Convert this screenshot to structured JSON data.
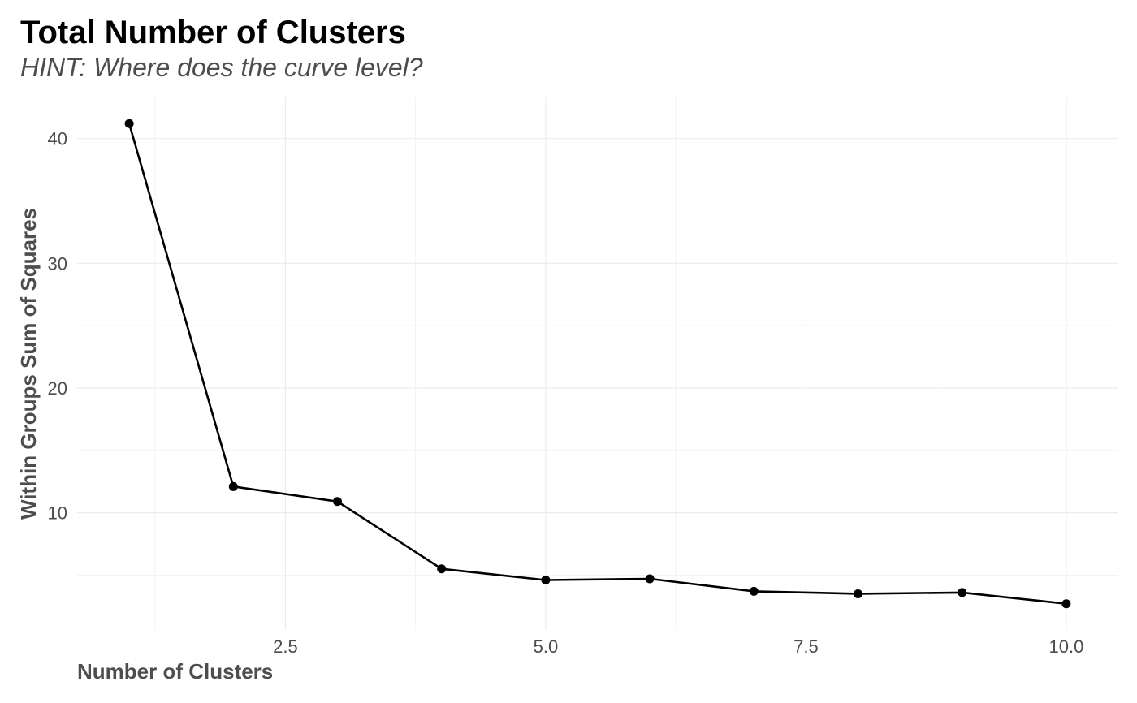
{
  "chart_data": {
    "type": "line",
    "title": "Total Number of Clusters",
    "subtitle": "HINT: Where does the curve level?",
    "xlabel": "Number of Clusters",
    "ylabel": "Within Groups Sum of Squares",
    "x": [
      1,
      2,
      3,
      4,
      5,
      6,
      7,
      8,
      9,
      10
    ],
    "values": [
      41.2,
      12.1,
      10.9,
      5.5,
      4.6,
      4.7,
      3.7,
      3.5,
      3.6,
      2.7
    ],
    "xlim": [
      0.5,
      10.5
    ],
    "ylim": [
      0.6,
      43.3
    ],
    "x_ticks": [
      2.5,
      5.0,
      7.5,
      10.0
    ],
    "x_tick_labels": [
      "2.5",
      "5.0",
      "7.5",
      "10.0"
    ],
    "x_minor_ticks": [
      1.25,
      3.75,
      6.25,
      8.75
    ],
    "y_ticks": [
      10,
      20,
      30,
      40
    ],
    "y_tick_labels": [
      "10",
      "20",
      "30",
      "40"
    ],
    "y_minor_ticks": [
      5,
      15,
      25,
      35
    ],
    "grid": true,
    "legend": "none",
    "line_color": "#000000",
    "point_color": "#000000"
  }
}
